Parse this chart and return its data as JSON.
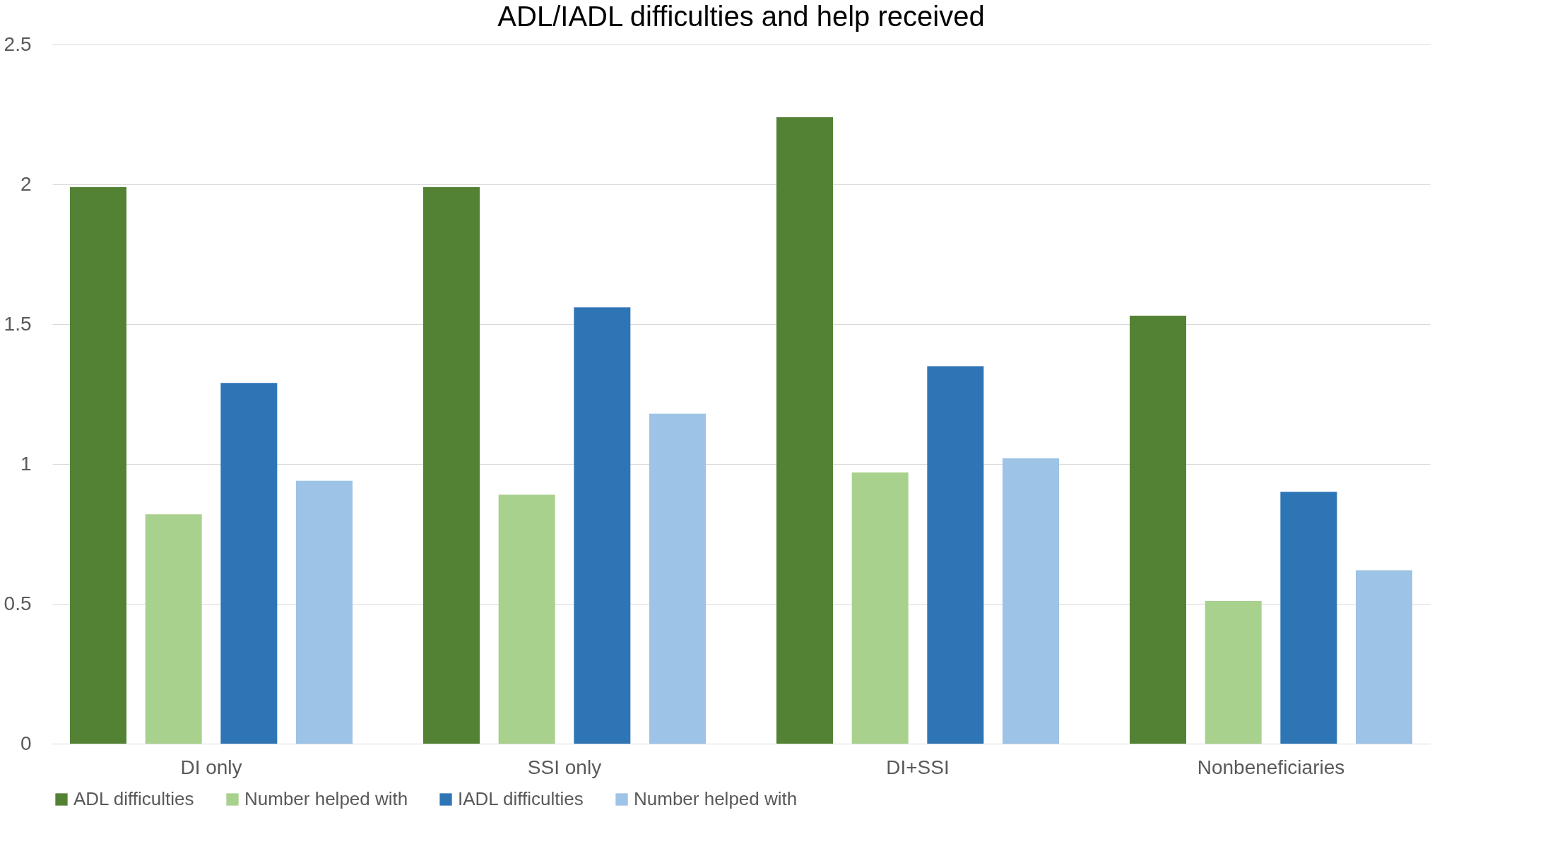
{
  "chart_data": {
    "type": "bar",
    "title": "ADL/IADL difficulties and help received",
    "categories": [
      "DI only",
      "SSI only",
      "DI+SSI",
      "Nonbeneficiaries"
    ],
    "series": [
      {
        "name": "ADL difficulties",
        "color": "#548235",
        "values": [
          1.99,
          1.99,
          2.24,
          1.53
        ]
      },
      {
        "name": "Number helped with",
        "color": "#a9d18e",
        "values": [
          0.82,
          0.89,
          0.97,
          0.51
        ]
      },
      {
        "name": "IADL difficulties",
        "color": "#2e75b6",
        "values": [
          1.29,
          1.56,
          1.35,
          0.9
        ]
      },
      {
        "name": "Number helped with",
        "color": "#9dc3e6",
        "values": [
          0.94,
          1.18,
          1.02,
          0.62
        ]
      }
    ],
    "ylim": [
      0,
      2.5
    ],
    "yticks": [
      0,
      0.5,
      1,
      1.5,
      2,
      2.5
    ],
    "grid": "y",
    "legend": "bottom"
  }
}
